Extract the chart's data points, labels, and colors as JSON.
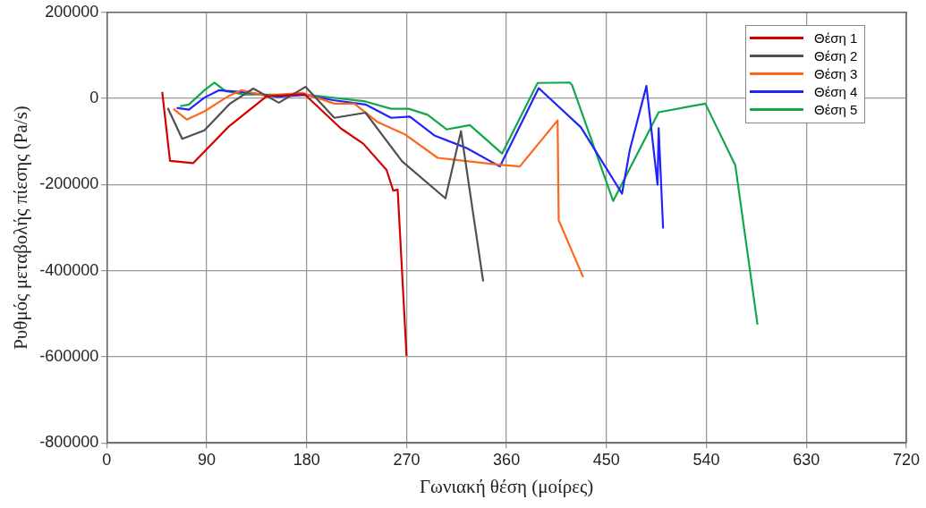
{
  "chart_data": {
    "type": "line",
    "xlabel": "Γωνιακή θέση (μοίρες)",
    "ylabel": "Ρυθμός μεταβολής πίεσης (Pa/s)",
    "xlim": [
      0,
      720
    ],
    "xticks": [
      0,
      90,
      180,
      270,
      360,
      450,
      540,
      630,
      720
    ],
    "ylim": [
      -800000,
      200000
    ],
    "yticks": [
      -800000,
      -600000,
      -400000,
      -200000,
      0,
      200000
    ],
    "grid": true,
    "legend": "top right",
    "marker": "none",
    "line_style": "solid",
    "series": [
      {
        "name": "Θέση 1",
        "color": "#d40000",
        "x": [
          50,
          57,
          78,
          110,
          144,
          178,
          211,
          231,
          252,
          258,
          262,
          270
        ],
        "values": [
          15000,
          -145000,
          -150000,
          -65000,
          5000,
          10000,
          -70000,
          -105000,
          -166000,
          -214000,
          -212000,
          -598000
        ]
      },
      {
        "name": "Θέση 2",
        "color": "#505050",
        "x": [
          55,
          68,
          88,
          111,
          132,
          155,
          179,
          205,
          233,
          266,
          305,
          319,
          339
        ],
        "values": [
          -22000,
          -94000,
          -74000,
          -12000,
          23000,
          -10000,
          27000,
          -45000,
          -33000,
          -146000,
          -232000,
          -76000,
          -425000
        ]
      },
      {
        "name": "Θέση 3",
        "color": "#ff6619",
        "x": [
          60,
          72,
          88,
          110,
          121,
          143,
          176,
          205,
          223,
          244,
          269,
          298,
          353,
          372,
          406,
          407,
          429
        ],
        "values": [
          -24000,
          -49000,
          -30000,
          6000,
          19000,
          6000,
          13000,
          -12000,
          -12000,
          -55000,
          -84000,
          -138000,
          -154000,
          -158000,
          -51000,
          -283000,
          -415000
        ]
      },
      {
        "name": "Θέση 4",
        "color": "#2222ff",
        "x": [
          63,
          74,
          88,
          101,
          126,
          154,
          179,
          204,
          233,
          256,
          273,
          295,
          324,
          354,
          389,
          427,
          464,
          471,
          486,
          496,
          497,
          501
        ],
        "values": [
          -22000,
          -26000,
          2000,
          19000,
          14000,
          4000,
          8000,
          -4000,
          -14000,
          -45000,
          -42000,
          -86000,
          -115000,
          -158000,
          24000,
          -67000,
          -221000,
          -120000,
          29000,
          -200000,
          -69000,
          -302000
        ]
      },
      {
        "name": "Θέση 5",
        "color": "#12a84a",
        "x": [
          66,
          74,
          88,
          97,
          107,
          124,
          179,
          233,
          256,
          272,
          289,
          306,
          327,
          356,
          388,
          417,
          419,
          456,
          497,
          539,
          566,
          586
        ],
        "values": [
          -18000,
          -14000,
          19000,
          37000,
          17000,
          9000,
          9000,
          -7000,
          -24000,
          -24000,
          -38000,
          -72000,
          -62000,
          -128000,
          36000,
          37000,
          31000,
          -238000,
          -32000,
          -12000,
          -155000,
          -525000
        ]
      }
    ]
  }
}
